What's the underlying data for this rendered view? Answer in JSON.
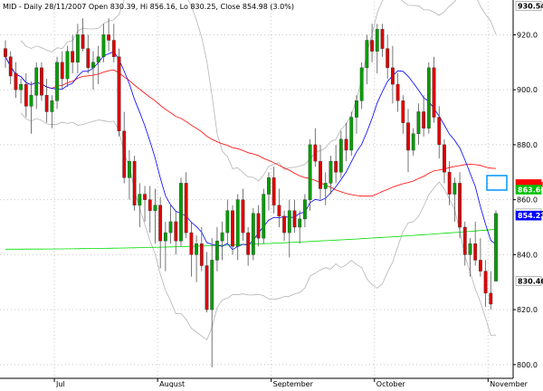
{
  "chart_data": {
    "type": "candlestick",
    "title": "MID - Daily 28/11/2007 Open 830.39, Hi 856.16, Lo 830.25, Close 854.98 (3.0%)",
    "x_ticks": [
      "Jul",
      "August",
      "September",
      "October",
      "November"
    ],
    "y_ticks": [
      "800.0",
      "820.0",
      "840.0",
      "860.0",
      "880.0",
      "900.0",
      "920.0"
    ],
    "ylim": [
      795,
      932
    ],
    "grid": true,
    "right_tags": [
      {
        "text": "930.545",
        "value": 930.545,
        "bg": "#ffffff",
        "fg": "#000000"
      },
      {
        "text": "865.665",
        "value": 865.665,
        "bg": "#ff0000",
        "fg": "#ff0000"
      },
      {
        "text": "863.668",
        "value": 863.668,
        "bg": "#00c000",
        "fg": "#ffffff"
      },
      {
        "text": "854.98",
        "value": 854.98,
        "bg": "#ffffff",
        "fg": "#000000"
      },
      {
        "text": "854.221",
        "value": 854.221,
        "bg": "#0000ff",
        "fg": "#ffffff"
      },
      {
        "text": "830.462",
        "value": 830.462,
        "bg": "#ffffff",
        "fg": "#000000"
      }
    ],
    "colors": {
      "up": "#00a000",
      "down": "#e00000",
      "ma_short": "#0000ff",
      "ma_mid": "#ff0000",
      "ma_long": "#00dd00",
      "bands": "#b4b4b4",
      "highlight": "#0096ff"
    },
    "candles": [
      [
        915,
        918,
        908,
        912
      ],
      [
        912,
        914,
        902,
        905
      ],
      [
        906,
        910,
        897,
        900
      ],
      [
        900,
        904,
        895,
        902
      ],
      [
        902,
        906,
        890,
        894
      ],
      [
        894,
        903,
        884,
        898
      ],
      [
        898,
        910,
        893,
        908
      ],
      [
        908,
        910,
        896,
        898
      ],
      [
        898,
        904,
        888,
        892
      ],
      [
        892,
        898,
        886,
        896
      ],
      [
        896,
        912,
        893,
        910
      ],
      [
        910,
        914,
        900,
        904
      ],
      [
        904,
        916,
        901,
        914
      ],
      [
        914,
        920,
        906,
        910
      ],
      [
        910,
        924,
        906,
        920
      ],
      [
        920,
        926,
        914,
        915
      ],
      [
        915,
        920,
        906,
        908
      ],
      [
        908,
        914,
        900,
        910
      ],
      [
        910,
        916,
        902,
        912
      ],
      [
        912,
        924,
        910,
        920
      ],
      [
        920,
        926,
        914,
        918
      ],
      [
        918,
        924,
        910,
        912
      ],
      [
        912,
        915,
        883,
        885
      ],
      [
        885,
        892,
        866,
        868
      ],
      [
        868,
        878,
        860,
        874
      ],
      [
        874,
        876,
        856,
        858
      ],
      [
        858,
        866,
        850,
        862
      ],
      [
        862,
        865,
        852,
        860
      ],
      [
        860,
        865,
        848,
        856
      ],
      [
        856,
        864,
        844,
        858
      ],
      [
        858,
        861,
        835,
        845
      ],
      [
        845,
        852,
        834,
        848
      ],
      [
        848,
        858,
        844,
        852
      ],
      [
        852,
        856,
        840,
        845
      ],
      [
        845,
        868,
        843,
        866
      ],
      [
        866,
        870,
        846,
        848
      ],
      [
        848,
        852,
        832,
        840
      ],
      [
        840,
        847,
        830,
        844
      ],
      [
        844,
        850,
        834,
        836
      ],
      [
        836,
        841,
        819,
        820
      ],
      [
        820,
        846,
        799,
        838
      ],
      [
        838,
        850,
        834,
        845
      ],
      [
        845,
        852,
        838,
        848
      ],
      [
        848,
        860,
        844,
        856
      ],
      [
        856,
        858,
        840,
        843
      ],
      [
        843,
        862,
        838,
        860
      ],
      [
        860,
        864,
        845,
        848
      ],
      [
        848,
        850,
        836,
        840
      ],
      [
        840,
        857,
        838,
        855
      ],
      [
        855,
        858,
        843,
        846
      ],
      [
        846,
        864,
        844,
        862
      ],
      [
        862,
        870,
        856,
        868
      ],
      [
        868,
        872,
        855,
        858
      ],
      [
        858,
        864,
        850,
        854
      ],
      [
        854,
        856,
        845,
        848
      ],
      [
        848,
        860,
        839,
        856
      ],
      [
        856,
        860,
        848,
        850
      ],
      [
        850,
        856,
        844,
        853
      ],
      [
        853,
        862,
        850,
        860
      ],
      [
        860,
        882,
        856,
        880
      ],
      [
        880,
        886,
        872,
        874
      ],
      [
        874,
        880,
        860,
        864
      ],
      [
        864,
        870,
        858,
        866
      ],
      [
        866,
        876,
        862,
        874
      ],
      [
        874,
        880,
        866,
        870
      ],
      [
        870,
        885,
        868,
        882
      ],
      [
        882,
        888,
        874,
        878
      ],
      [
        878,
        892,
        876,
        890
      ],
      [
        890,
        898,
        884,
        896
      ],
      [
        896,
        910,
        893,
        908
      ],
      [
        908,
        920,
        902,
        918
      ],
      [
        918,
        924,
        910,
        914
      ],
      [
        914,
        924,
        906,
        922
      ],
      [
        922,
        924,
        912,
        915
      ],
      [
        915,
        920,
        904,
        908
      ],
      [
        908,
        916,
        895,
        902
      ],
      [
        902,
        906,
        892,
        896
      ],
      [
        896,
        898,
        884,
        888
      ],
      [
        888,
        893,
        870,
        878
      ],
      [
        878,
        886,
        876,
        884
      ],
      [
        884,
        895,
        880,
        892
      ],
      [
        892,
        898,
        883,
        886
      ],
      [
        886,
        910,
        884,
        908
      ],
      [
        908,
        912,
        888,
        890
      ],
      [
        890,
        894,
        875,
        880
      ],
      [
        880,
        882,
        866,
        870
      ],
      [
        870,
        874,
        858,
        862
      ],
      [
        862,
        868,
        852,
        866
      ],
      [
        866,
        870,
        846,
        850
      ],
      [
        850,
        852,
        836,
        840
      ],
      [
        840,
        846,
        832,
        844
      ],
      [
        844,
        852,
        836,
        838
      ],
      [
        838,
        846,
        832,
        834
      ],
      [
        834,
        838,
        821,
        826
      ],
      [
        826,
        834,
        820,
        822
      ],
      [
        830.39,
        856.16,
        830.25,
        854.98
      ]
    ]
  }
}
